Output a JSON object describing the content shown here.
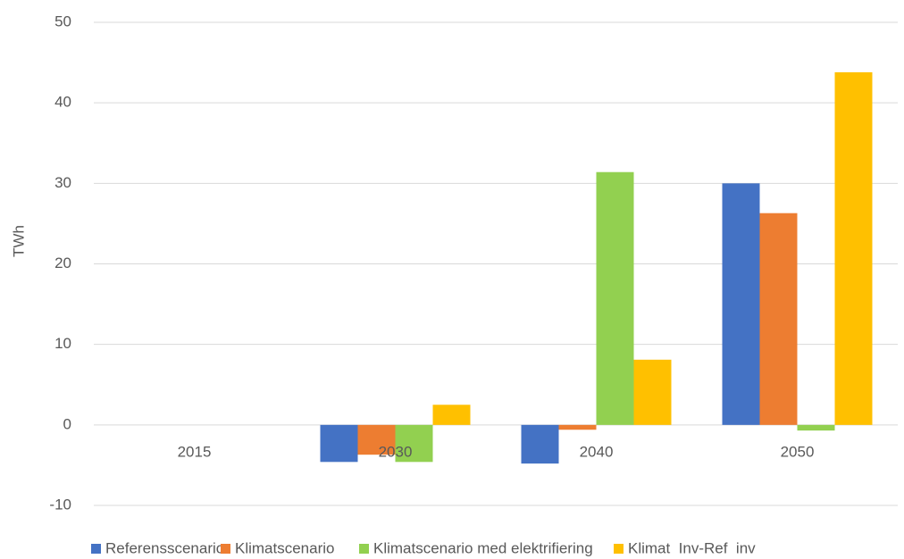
{
  "chart_data": {
    "type": "bar",
    "y_label": "TWh",
    "categories": [
      "2015",
      "2030",
      "2040",
      "2050"
    ],
    "series": [
      {
        "name": "Referensscenario",
        "color": "#4472c4",
        "values": [
          0,
          -4.6,
          -4.8,
          30.0
        ]
      },
      {
        "name": "Klimatscenario",
        "color": "#ed7d31",
        "values": [
          0,
          -3.7,
          -0.6,
          26.3
        ]
      },
      {
        "name": "Klimatscenario med elektrifiering",
        "color": "#92d050",
        "values": [
          0,
          -4.6,
          31.4,
          -0.7
        ]
      },
      {
        "name": "Klimat  Inv-Ref  inv",
        "color": "#ffc000",
        "values": [
          0,
          2.5,
          8.1,
          43.8
        ]
      }
    ],
    "ylim": [
      -10,
      50
    ],
    "yticks": [
      -10,
      0,
      10,
      20,
      30,
      40,
      50
    ],
    "grid": true,
    "legend": "bottom"
  }
}
